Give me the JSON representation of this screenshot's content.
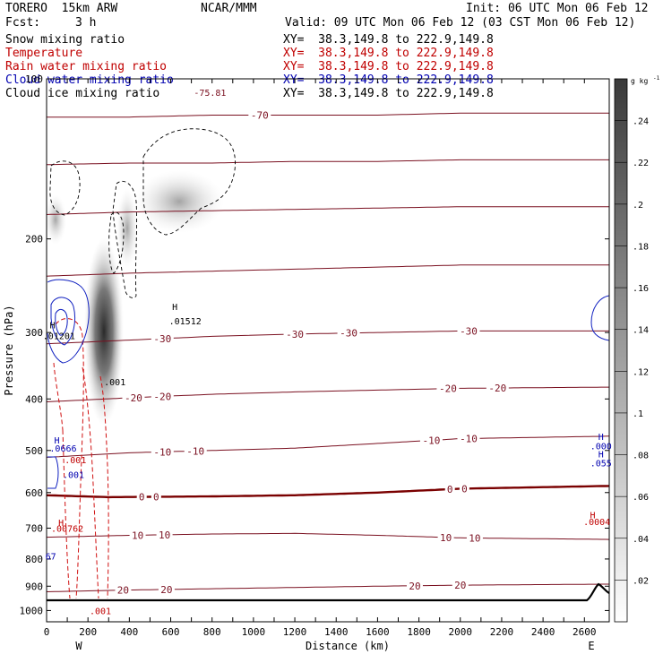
{
  "header": {
    "model": "TORERO  15km ARW",
    "org": "NCAR/MMM",
    "init": "Init: 06 UTC Mon 06 Feb 12",
    "fcst_label": "Fcst:",
    "fcst_value": "3 h",
    "valid": "Valid: 09 UTC Mon 06 Feb 12 (03 CST Mon 06 Feb 12)"
  },
  "fields": [
    {
      "name": "Snow mixing ratio",
      "color": "#000000",
      "xy": "XY=  38.3,149.8 to 222.9,149.8",
      "xy_color": "#000000"
    },
    {
      "name": "Temperature",
      "color": "#c00000",
      "xy": "XY=  38.3,149.8 to 222.9,149.8",
      "xy_color": "#c00000"
    },
    {
      "name": "Rain water mixing ratio",
      "color": "#c00000",
      "xy": "XY=  38.3,149.8 to 222.9,149.8",
      "xy_color": "#c00000"
    },
    {
      "name": "Cloud water mixing ratio",
      "color": "#0000b0",
      "xy": "XY=  38.3,149.8 to 222.9,149.8",
      "xy_color": "#0000b0"
    },
    {
      "name": "Cloud ice mixing ratio",
      "color": "#000000",
      "xy": "XY=  38.3,149.8 to 222.9,149.8",
      "xy_color": "#000000"
    }
  ],
  "chart_data": {
    "type": "contour",
    "xlabel": "Distance (km)",
    "ylabel": "Pressure (hPa)",
    "xlim": [
      0,
      2720
    ],
    "ylim": [
      1050,
      100
    ],
    "y_scale": "log",
    "x_ticks": [
      0,
      100,
      200,
      300,
      400,
      500,
      600,
      700,
      800,
      900,
      1000,
      1100,
      1200,
      1300,
      1400,
      1500,
      1600,
      1700,
      1800,
      1900,
      2000,
      2100,
      2200,
      2300,
      2400,
      2500,
      2600
    ],
    "x_tick_labels": [
      "0",
      "",
      "200",
      "",
      "400",
      "",
      "600",
      "",
      "800",
      "",
      "1000",
      "",
      "1200",
      "",
      "1400",
      "",
      "1600",
      "",
      "1800",
      "",
      "2000",
      "",
      "2200",
      "",
      "2400",
      "",
      "2600"
    ],
    "y_ticks": [
      100,
      200,
      300,
      400,
      500,
      600,
      700,
      800,
      900,
      1000
    ],
    "y_tick_labels": [
      "100",
      "200",
      "300",
      "400",
      "500",
      "600",
      "700",
      "800",
      "900",
      "1000"
    ],
    "x_end_labels": {
      "left": "W",
      "right": "E"
    },
    "temperature_color": "#7a1020",
    "temperature_freezing_color": "#7a0000",
    "temperature_contours": [
      {
        "value": -70,
        "label": "-70",
        "pressure": [
          118,
          118,
          117,
          117,
          117,
          116,
          116
        ],
        "x": [
          0,
          400,
          800,
          1200,
          1600,
          2000,
          2720
        ],
        "label_x": [
          1030
        ],
        "label_text": "-70"
      },
      {
        "value": -60,
        "pressure": [
          145,
          144,
          144,
          143,
          143,
          142,
          142
        ],
        "x": [
          0,
          400,
          800,
          1200,
          1600,
          2000,
          2720
        ]
      },
      {
        "value": -50,
        "pressure": [
          180,
          178,
          177,
          176,
          175,
          174,
          174
        ],
        "x": [
          0,
          400,
          800,
          1200,
          1600,
          2000,
          2720
        ]
      },
      {
        "value": -40,
        "pressure": [
          235,
          232,
          230,
          228,
          226,
          224,
          224
        ],
        "x": [
          0,
          400,
          800,
          1200,
          1600,
          2000,
          2720
        ]
      },
      {
        "value": -30,
        "pressure": [
          315,
          310,
          305,
          302,
          300,
          298,
          298
        ],
        "x": [
          0,
          400,
          800,
          1200,
          1600,
          2000,
          2720
        ],
        "label_x": [
          560,
          1200,
          1460,
          2040
        ],
        "label_text": "-30"
      },
      {
        "value": -20,
        "pressure": [
          405,
          398,
          392,
          388,
          385,
          382,
          380
        ],
        "x": [
          0,
          400,
          800,
          1200,
          1600,
          2000,
          2720
        ],
        "label_x": [
          420,
          560,
          1940,
          2180
        ],
        "label_text": "-20"
      },
      {
        "value": -10,
        "pressure": [
          515,
          505,
          500,
          495,
          485,
          475,
          470
        ],
        "x": [
          0,
          400,
          800,
          1200,
          1600,
          2000,
          2720
        ],
        "label_x": [
          560,
          720,
          1860,
          2040
        ],
        "label_text": "-10"
      },
      {
        "value": 0,
        "pressure": [
          607,
          612,
          610,
          607,
          600,
          590,
          583
        ],
        "x": [
          0,
          300,
          800,
          1200,
          1600,
          2000,
          2720
        ],
        "label_x": [
          460,
          530,
          1950,
          2020
        ],
        "label_text": "0"
      },
      {
        "value": 10,
        "pressure": [
          728,
          722,
          718,
          716,
          722,
          730,
          735
        ],
        "x": [
          0,
          400,
          800,
          1200,
          1600,
          2000,
          2720
        ],
        "label_x": [
          440,
          570,
          1930,
          2070
        ],
        "label_text": "10"
      },
      {
        "value": 20,
        "pressure": [
          922,
          915,
          910,
          905,
          900,
          896,
          892
        ],
        "x": [
          0,
          400,
          800,
          1200,
          1600,
          2000,
          2720
        ],
        "label_x": [
          370,
          580,
          1780,
          2000
        ],
        "label_text": "20"
      }
    ],
    "labels_on_plot": [
      {
        "text": "-75.81",
        "x": 790,
        "p": 106,
        "color": "#7a1020"
      },
      {
        "text": "H",
        "x": 620,
        "p": 268,
        "color": "#000000"
      },
      {
        "text": ".01512",
        "x": 670,
        "p": 285,
        "color": "#000000"
      },
      {
        "text": "H",
        "x": 28,
        "p": 290,
        "color": "#000000"
      },
      {
        "text": ".01201",
        "x": 60,
        "p": 304,
        "color": "#000000"
      },
      {
        "text": ".001",
        "x": 330,
        "p": 371,
        "color": "#000000"
      },
      {
        "text": "H",
        "x": 50,
        "p": 478,
        "color": "#0000b0"
      },
      {
        "text": ".0666",
        "x": 80,
        "p": 495,
        "color": "#0000b0"
      },
      {
        "text": ".001",
        "x": 130,
        "p": 555,
        "color": "#0000b0"
      },
      {
        "text": ".001",
        "x": 140,
        "p": 520,
        "color": "#c00000"
      },
      {
        "text": "H",
        "x": 70,
        "p": 682,
        "color": "#c00000"
      },
      {
        "text": ".00762",
        "x": 100,
        "p": 700,
        "color": "#c00000"
      },
      {
        "text": ".001",
        "x": 260,
        "p": 1000,
        "color": "#c00000"
      },
      {
        "text": "H",
        "x": 2640,
        "p": 660,
        "color": "#c00000"
      },
      {
        "text": ".0004",
        "x": 2660,
        "p": 680,
        "color": "#c00000"
      },
      {
        "text": "H",
        "x": 2680,
        "p": 470,
        "color": "#0000b0"
      },
      {
        "text": ".000",
        "x": 2680,
        "p": 490,
        "color": "#0000b0"
      },
      {
        "text": "H",
        "x": 2680,
        "p": 507,
        "color": "#0000b0"
      },
      {
        "text": ".055",
        "x": 2680,
        "p": 527,
        "color": "#0000b0"
      },
      {
        "text": "67",
        "x": 20,
        "p": 790,
        "color": "#0000b0"
      }
    ],
    "colorbar": {
      "unit": "g kg",
      "unit_sup": "-1",
      "ticks": [
        ".02",
        ".04",
        ".06",
        ".08",
        ".1",
        ".12",
        ".14",
        ".16",
        ".18",
        ".2",
        ".22",
        ".24"
      ],
      "min": 0,
      "max": 0.26
    }
  }
}
